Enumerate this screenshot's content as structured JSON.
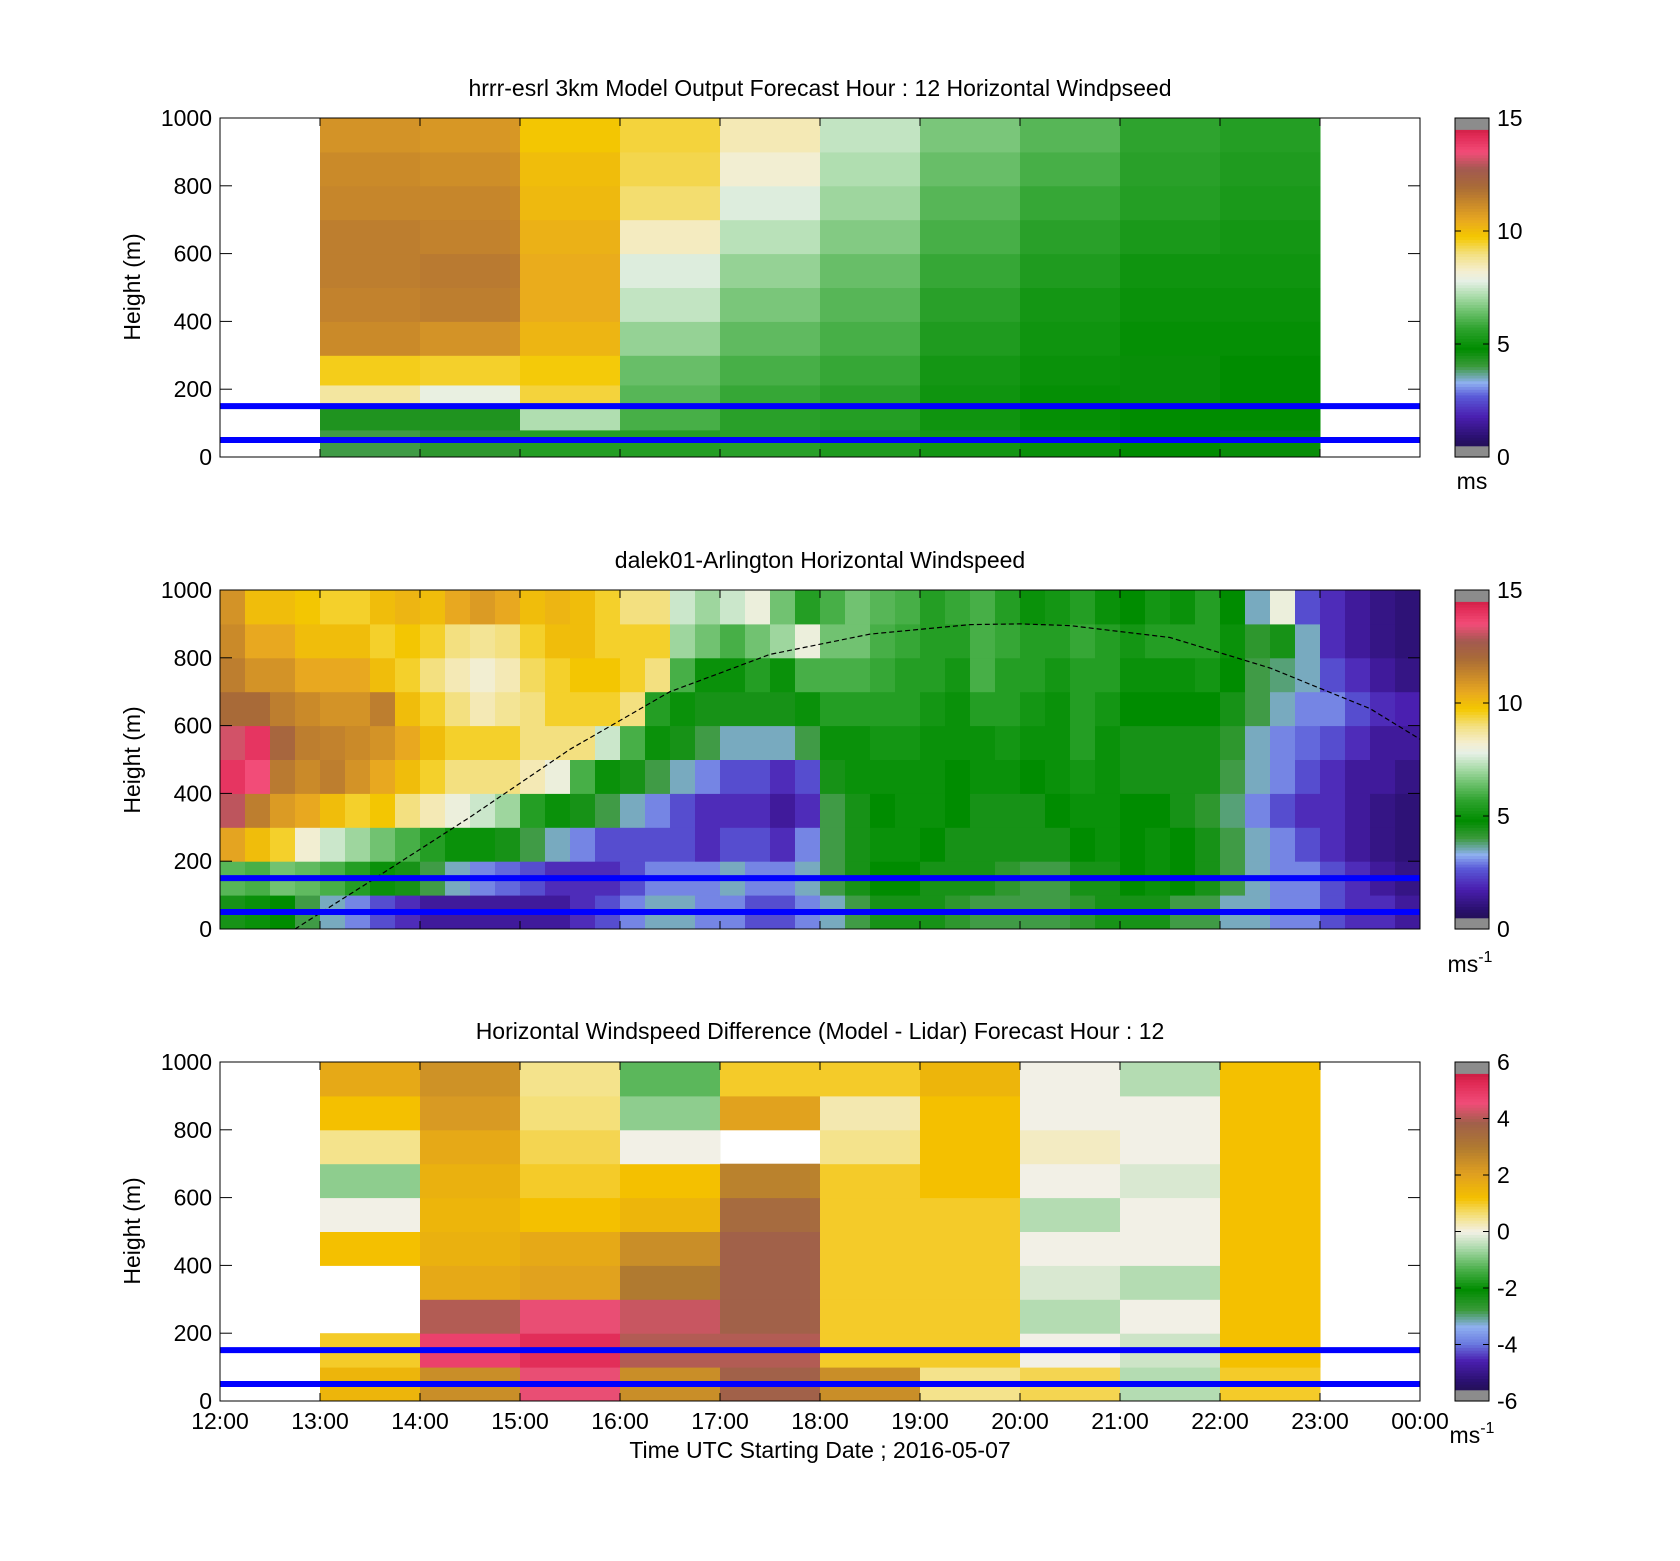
{
  "chart_data": [
    {
      "type": "heatmap",
      "title": "hrrr-esrl 3km Model Output   Forecast Hour : 12 Horizontal Windpseed",
      "xlabel": "",
      "ylabel": "Height (m)",
      "xlim": [
        12,
        24
      ],
      "ylim": [
        0,
        1000
      ],
      "x_ticks": [
        12,
        13,
        14,
        15,
        16,
        17,
        18,
        19,
        20,
        21,
        22,
        23,
        24
      ],
      "y_ticks": [
        0,
        200,
        400,
        600,
        800,
        1000
      ],
      "y_tick_labels": [
        "0",
        "200",
        "400",
        "600",
        "800",
        "1000"
      ],
      "colorbar": {
        "min": 0,
        "max": 15,
        "ticks": [
          0,
          5,
          10,
          15
        ],
        "tick_labels": [
          "0",
          "5",
          "10",
          "15"
        ],
        "unit": "ms",
        "unit_sup": "",
        "colormap": "windspeed"
      },
      "reference_lines": [
        {
          "y": 150,
          "color": "#0000ff"
        },
        {
          "y": 50,
          "color": "#0000ff"
        }
      ],
      "heights": [
        30,
        130,
        175,
        250,
        350,
        450,
        550,
        650,
        750,
        850,
        950
      ],
      "columns": [
        {
          "x": 13,
          "values": [
            4.0,
            4.4,
            8.7,
            9.6,
            11.2,
            11.4,
            11.5,
            11.5,
            11.3,
            11.2,
            11.0
          ]
        },
        {
          "x": 14,
          "values": [
            4.2,
            4.4,
            7.9,
            9.5,
            11.0,
            11.5,
            11.6,
            11.4,
            11.3,
            11.1,
            10.9
          ]
        },
        {
          "x": 15,
          "values": [
            5.5,
            7.2,
            9.4,
            9.7,
            10.2,
            10.4,
            10.4,
            10.3,
            10.1,
            10.0,
            9.8
          ]
        },
        {
          "x": 16,
          "values": [
            5.5,
            6.0,
            6.2,
            6.4,
            6.9,
            7.4,
            7.7,
            8.4,
            9.1,
            9.3,
            9.4
          ]
        },
        {
          "x": 17,
          "values": [
            5.6,
            5.6,
            5.8,
            6.0,
            6.3,
            6.6,
            6.9,
            7.3,
            7.7,
            8.2,
            8.5
          ]
        },
        {
          "x": 18,
          "values": [
            5.4,
            5.5,
            5.6,
            5.8,
            6.0,
            6.2,
            6.4,
            6.7,
            7.0,
            7.2,
            7.4
          ]
        },
        {
          "x": 19,
          "values": [
            5.2,
            5.1,
            5.1,
            5.2,
            5.4,
            5.6,
            5.8,
            6.0,
            6.2,
            6.4,
            6.6
          ]
        },
        {
          "x": 20,
          "values": [
            5.0,
            4.9,
            4.9,
            5.0,
            5.1,
            5.2,
            5.4,
            5.6,
            5.8,
            6.0,
            6.2
          ]
        },
        {
          "x": 21,
          "values": [
            4.8,
            4.8,
            4.7,
            4.7,
            4.9,
            5.0,
            5.1,
            5.3,
            5.5,
            5.6,
            5.7
          ]
        },
        {
          "x": 22,
          "values": [
            4.7,
            4.8,
            4.8,
            4.8,
            4.9,
            5.0,
            5.1,
            5.2,
            5.3,
            5.4,
            5.5
          ]
        }
      ]
    },
    {
      "type": "heatmap",
      "title": "dalek01-Arlington  Horizontal Windspeed",
      "xlabel": "",
      "ylabel": "Height (m)",
      "xlim": [
        12,
        24
      ],
      "ylim": [
        0,
        1000
      ],
      "x_ticks": [
        12,
        13,
        14,
        15,
        16,
        17,
        18,
        19,
        20,
        21,
        22,
        23,
        24
      ],
      "y_ticks": [
        0,
        200,
        400,
        600,
        800,
        1000
      ],
      "y_tick_labels": [
        "0",
        "200",
        "400",
        "600",
        "800",
        "1000"
      ],
      "colorbar": {
        "min": 0,
        "max": 15,
        "ticks": [
          0,
          5,
          10,
          15
        ],
        "tick_labels": [
          "0",
          "5",
          "10",
          "15"
        ],
        "unit": "ms",
        "unit_sup": "-1",
        "colormap": "windspeed"
      },
      "reference_lines": [
        {
          "y": 150,
          "color": "#0000ff"
        },
        {
          "y": 50,
          "color": "#0000ff"
        }
      ],
      "boundary_layer": {
        "style": "dashed",
        "points": [
          [
            12.75,
            0
          ],
          [
            13.5,
            140
          ],
          [
            14.5,
            330
          ],
          [
            15.5,
            530
          ],
          [
            16.5,
            700
          ],
          [
            17.5,
            810
          ],
          [
            18.5,
            870
          ],
          [
            19.5,
            898
          ],
          [
            20.0,
            900
          ],
          [
            20.5,
            895
          ],
          [
            21.5,
            860
          ],
          [
            22.5,
            770
          ],
          [
            23.5,
            650
          ],
          [
            24.0,
            560
          ]
        ]
      },
      "column_width_h": 0.25,
      "times": [
        12.125,
        12.375,
        12.625,
        12.875,
        13.125,
        13.375,
        13.625,
        13.875,
        14.125,
        14.375,
        14.625,
        14.875,
        15.125,
        15.375,
        15.625,
        15.875,
        16.125,
        16.375,
        16.625,
        16.875,
        17.125,
        17.375,
        17.625,
        17.875,
        18.125,
        18.375,
        18.625,
        18.875,
        19.125,
        19.375,
        19.625,
        19.875,
        20.125,
        20.375,
        20.625,
        20.875,
        21.125,
        21.375,
        21.625,
        21.875,
        22.125,
        22.375,
        22.625,
        22.875,
        23.125,
        23.375,
        23.625,
        23.875
      ],
      "heights": [
        50,
        150,
        250,
        350,
        450,
        550,
        650,
        750,
        850,
        950
      ],
      "values": [
        [
          4.5,
          6.2,
          10.6,
          13.0,
          14.0,
          13.2,
          12.0,
          11.5,
          11.2,
          11.0
        ],
        [
          5.0,
          6.0,
          10.0,
          11.5,
          13.5,
          14.0,
          12.0,
          11.0,
          10.5,
          10.0
        ],
        [
          4.8,
          6.5,
          9.5,
          10.8,
          11.6,
          12.2,
          11.5,
          11.0,
          10.5,
          10.0
        ],
        [
          4.0,
          6.3,
          8.2,
          10.5,
          11.2,
          11.5,
          11.2,
          10.5,
          10.0,
          9.8
        ],
        [
          3.5,
          6.0,
          7.5,
          10.0,
          11.5,
          11.4,
          11.0,
          10.5,
          10.0,
          9.5
        ],
        [
          3.0,
          5.5,
          7.0,
          9.5,
          11.0,
          11.2,
          11.0,
          10.5,
          10.0,
          9.5
        ],
        [
          2.5,
          5.0,
          6.5,
          9.8,
          10.5,
          11.0,
          11.5,
          10.0,
          9.5,
          10.0
        ],
        [
          2.0,
          4.5,
          6.0,
          9.0,
          10.0,
          10.5,
          10.0,
          9.5,
          9.8,
          10.2
        ],
        [
          1.5,
          4.0,
          5.5,
          8.5,
          9.5,
          10.0,
          9.5,
          9.0,
          9.5,
          10.0
        ],
        [
          1.5,
          3.5,
          5.0,
          8.0,
          9.0,
          9.5,
          9.0,
          8.5,
          9.0,
          10.5
        ],
        [
          1.5,
          3.0,
          5.0,
          7.5,
          9.0,
          9.5,
          8.5,
          8.2,
          8.8,
          10.8
        ],
        [
          1.5,
          2.8,
          4.5,
          7.0,
          9.0,
          9.5,
          8.8,
          8.5,
          9.0,
          10.5
        ],
        [
          1.5,
          2.5,
          4.0,
          5.5,
          8.5,
          9.0,
          9.0,
          9.2,
          9.5,
          10.0
        ],
        [
          1.5,
          2.0,
          3.5,
          5.0,
          8.0,
          9.0,
          9.5,
          9.5,
          10.0,
          10.2
        ],
        [
          2.0,
          2.0,
          3.0,
          4.5,
          6.0,
          9.0,
          9.5,
          9.8,
          10.0,
          10.0
        ],
        [
          2.5,
          2.0,
          2.5,
          4.0,
          5.0,
          7.5,
          9.5,
          9.8,
          9.5,
          9.5
        ],
        [
          3.0,
          2.5,
          2.5,
          3.5,
          4.5,
          6.0,
          9.0,
          9.5,
          9.5,
          9.0
        ],
        [
          3.5,
          3.0,
          2.5,
          3.0,
          4.0,
          5.0,
          5.5,
          9.0,
          9.5,
          9.0
        ],
        [
          3.5,
          3.0,
          2.5,
          2.5,
          3.5,
          4.5,
          5.0,
          6.0,
          7.0,
          7.5
        ],
        [
          3.0,
          3.0,
          2.0,
          2.0,
          3.0,
          4.0,
          4.5,
          5.0,
          6.5,
          7.0
        ],
        [
          3.0,
          3.5,
          2.5,
          2.0,
          2.5,
          3.5,
          4.5,
          5.0,
          6.0,
          7.5
        ],
        [
          2.5,
          3.0,
          2.5,
          2.0,
          2.5,
          3.5,
          4.5,
          5.5,
          6.5,
          8.0
        ],
        [
          2.5,
          3.0,
          2.0,
          1.5,
          2.0,
          3.5,
          4.5,
          5.0,
          7.0,
          6.5
        ],
        [
          3.0,
          3.5,
          3.0,
          2.0,
          2.5,
          4.0,
          5.0,
          6.0,
          8.0,
          5.5
        ],
        [
          3.5,
          4.0,
          4.0,
          4.0,
          4.5,
          5.0,
          5.5,
          6.0,
          6.5,
          6.0
        ],
        [
          4.0,
          4.5,
          4.5,
          4.5,
          5.0,
          5.0,
          5.5,
          6.0,
          6.5,
          6.5
        ],
        [
          4.5,
          4.8,
          5.0,
          4.8,
          5.0,
          5.2,
          5.5,
          5.8,
          6.0,
          6.2
        ],
        [
          4.5,
          4.8,
          5.0,
          5.0,
          5.0,
          5.2,
          5.5,
          5.5,
          5.8,
          6.0
        ],
        [
          4.5,
          4.5,
          4.8,
          5.0,
          5.0,
          5.0,
          5.2,
          5.5,
          5.5,
          5.5
        ],
        [
          4.2,
          4.5,
          4.5,
          4.8,
          4.8,
          5.0,
          5.0,
          5.2,
          5.5,
          5.8
        ],
        [
          4.0,
          4.5,
          4.5,
          4.5,
          5.0,
          5.0,
          5.5,
          6.0,
          6.0,
          6.0
        ],
        [
          4.0,
          4.2,
          4.5,
          4.5,
          5.0,
          5.2,
          5.5,
          5.5,
          5.8,
          5.5
        ],
        [
          4.0,
          4.0,
          4.5,
          4.5,
          4.8,
          5.0,
          5.2,
          5.5,
          5.5,
          5.0
        ],
        [
          4.0,
          4.0,
          4.5,
          4.8,
          5.0,
          5.0,
          5.0,
          5.2,
          5.5,
          5.2
        ],
        [
          4.2,
          4.5,
          4.8,
          5.0,
          5.2,
          5.5,
          5.5,
          5.5,
          5.8,
          5.5
        ],
        [
          4.5,
          4.5,
          5.0,
          5.0,
          5.0,
          5.0,
          5.2,
          5.5,
          5.5,
          5.0
        ],
        [
          4.5,
          4.8,
          4.8,
          4.8,
          4.5,
          4.5,
          4.8,
          5.0,
          5.2,
          4.8
        ],
        [
          4.5,
          5.0,
          5.0,
          4.8,
          4.5,
          4.5,
          4.8,
          5.0,
          5.5,
          5.2
        ],
        [
          4.0,
          4.8,
          4.8,
          4.5,
          4.5,
          4.5,
          4.8,
          5.0,
          5.5,
          5.0
        ],
        [
          4.0,
          4.5,
          4.5,
          4.2,
          4.5,
          4.5,
          4.8,
          5.2,
          5.5,
          5.5
        ],
        [
          3.5,
          4.0,
          4.0,
          3.8,
          4.0,
          4.2,
          4.5,
          4.8,
          5.0,
          4.8
        ],
        [
          3.5,
          3.5,
          3.5,
          3.0,
          3.5,
          3.5,
          4.0,
          4.0,
          4.2,
          3.5
        ],
        [
          3.0,
          3.0,
          3.0,
          2.5,
          3.0,
          3.0,
          3.5,
          3.8,
          4.5,
          8.0
        ],
        [
          3.0,
          3.0,
          2.5,
          2.0,
          2.5,
          2.8,
          3.0,
          3.5,
          3.5,
          2.5
        ],
        [
          2.5,
          2.5,
          2.0,
          2.0,
          2.0,
          2.5,
          3.0,
          2.5,
          2.0,
          2.0
        ],
        [
          2.0,
          2.0,
          1.5,
          1.5,
          1.5,
          2.0,
          2.5,
          2.0,
          1.5,
          1.5
        ],
        [
          2.0,
          1.5,
          1.2,
          1.2,
          1.5,
          1.5,
          2.0,
          1.5,
          1.2,
          1.2
        ],
        [
          1.5,
          1.2,
          1.0,
          1.0,
          1.2,
          1.5,
          1.8,
          1.2,
          1.0,
          1.0
        ]
      ]
    },
    {
      "type": "heatmap",
      "title": "Horizontal Windspeed Difference (Model - Lidar) Forecast Hour : 12",
      "xlabel": "Time UTC  Starting Date ; 2016-05-07",
      "ylabel": "Height (m)",
      "xlim": [
        12,
        24
      ],
      "ylim": [
        0,
        1000
      ],
      "x_ticks": [
        12,
        13,
        14,
        15,
        16,
        17,
        18,
        19,
        20,
        21,
        22,
        23,
        24
      ],
      "x_tick_labels": [
        "12:00",
        "13:00",
        "14:00",
        "15:00",
        "16:00",
        "17:00",
        "18:00",
        "19:00",
        "20:00",
        "21:00",
        "22:00",
        "23:00",
        "00:00"
      ],
      "y_ticks": [
        0,
        200,
        400,
        600,
        800,
        1000
      ],
      "y_tick_labels": [
        "0",
        "200",
        "400",
        "600",
        "800",
        "1000"
      ],
      "colorbar": {
        "min": -6,
        "max": 6,
        "ticks": [
          -6,
          -4,
          -2,
          0,
          2,
          4,
          6
        ],
        "tick_labels": [
          "-6",
          "-4",
          "-2",
          "0",
          "2",
          "4",
          "6"
        ],
        "unit": "ms",
        "unit_sup": "-1",
        "colormap": "difference"
      },
      "reference_lines": [
        {
          "y": 150,
          "color": "#0000ff"
        },
        {
          "y": 50,
          "color": "#0000ff"
        }
      ],
      "heights": [
        50,
        150,
        250,
        350,
        450,
        550,
        650,
        750,
        850,
        950
      ],
      "columns": [
        {
          "x": 13,
          "values": [
            1.5,
            1.0,
            null,
            null,
            1.2,
            0.0,
            -0.8,
            0.5,
            1.2,
            1.8
          ]
        },
        {
          "x": 14,
          "values": [
            2.5,
            4.8,
            4.0,
            1.8,
            1.6,
            1.5,
            1.6,
            1.8,
            2.2,
            2.4
          ]
        },
        {
          "x": 15,
          "values": [
            4.5,
            5.2,
            4.5,
            2.0,
            1.8,
            1.2,
            1.0,
            0.8,
            0.6,
            0.5
          ]
        },
        {
          "x": 16,
          "values": [
            2.5,
            4.0,
            4.2,
            3.0,
            2.5,
            1.5,
            1.2,
            0.0,
            -0.8,
            -1.2
          ]
        },
        {
          "x": 17,
          "values": [
            3.8,
            4.0,
            3.8,
            3.8,
            3.8,
            3.5,
            2.8,
            null,
            2.0,
            1.0
          ]
        },
        {
          "x": 18,
          "values": [
            2.5,
            1.0,
            1.0,
            1.0,
            1.0,
            1.0,
            1.0,
            0.5,
            0.3,
            1.0
          ]
        },
        {
          "x": 19,
          "values": [
            0.5,
            1.0,
            1.0,
            1.0,
            1.0,
            1.0,
            1.2,
            1.2,
            1.2,
            1.5
          ]
        },
        {
          "x": 20,
          "values": [
            0.8,
            0.0,
            -0.5,
            -0.2,
            0.0,
            -0.5,
            0.0,
            0.2,
            0.0,
            0.0
          ]
        },
        {
          "x": 21,
          "values": [
            -0.5,
            -0.3,
            0.0,
            -0.5,
            0.0,
            0.0,
            -0.2,
            0.0,
            0.0,
            -0.5
          ]
        },
        {
          "x": 22,
          "values": [
            1.0,
            1.2,
            1.2,
            1.2,
            1.2,
            1.2,
            1.2,
            1.2,
            1.2,
            1.2
          ]
        }
      ]
    }
  ]
}
